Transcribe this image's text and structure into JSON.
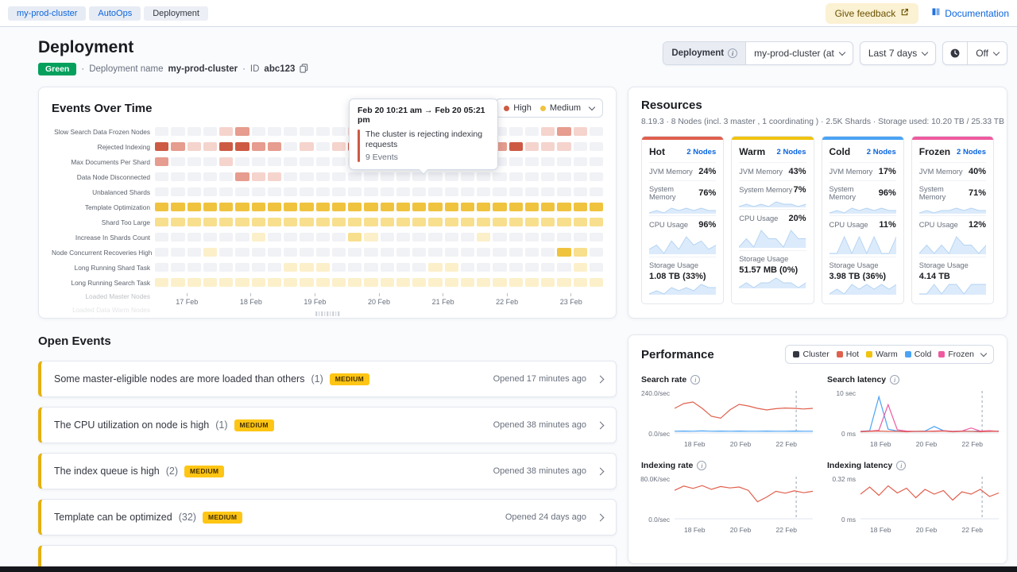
{
  "topbar": {
    "breadcrumbs": [
      {
        "label": "my-prod-cluster",
        "current": false
      },
      {
        "label": "AutoOps",
        "current": false
      },
      {
        "label": "Deployment",
        "current": true
      }
    ],
    "feedback_label": "Give feedback",
    "documentation_label": "Documentation"
  },
  "page_header": {
    "title": "Deployment",
    "health_badge": "Green",
    "deployment_name_label": "Deployment name",
    "deployment_name": "my-prod-cluster",
    "id_label": "ID",
    "id_value": "abc123",
    "controls": {
      "deployment_label": "Deployment",
      "deployment_value": "my-prod-cluster (at",
      "time_range": "Last 7 days",
      "refresh_value": "Off"
    }
  },
  "colors": {
    "accent_blue": "#0B64DD",
    "health_green": "#04A05C",
    "warning_badge": "#FEC514",
    "high_red": "#CD5A43",
    "medium_yellow": "#F0C33F",
    "hot": "#E0604E",
    "warm": "#F0C30F",
    "cold": "#4BA3F4",
    "frozen": "#EE5A9F",
    "cluster": "#343741"
  },
  "events_over_time": {
    "title": "Events Over Time",
    "legend": [
      {
        "label": "High",
        "color": "#CD5A43"
      },
      {
        "label": "Medium",
        "color": "#F0C33F"
      }
    ],
    "tooltip": {
      "title": "Feb 20 10:21 am → Feb 20 05:21 pm",
      "message": "The cluster is rejecting indexing requests",
      "count": "9 Events"
    },
    "x_labels": [
      "17 Feb",
      "18 Feb",
      "19 Feb",
      "20 Feb",
      "21 Feb",
      "22 Feb",
      "23 Feb"
    ],
    "palettes": {
      "empty": "#f1f2f6",
      "red": [
        "#f5d4cd",
        "#e69c8e",
        "#cd5a43"
      ],
      "yellow": [
        "#fcf0ca",
        "#f8df8d",
        "#f0c33f"
      ]
    },
    "rows": [
      {
        "name": "Slow Search Data Frozen Nodes",
        "palette": "red",
        "cells": [
          0,
          0,
          0,
          0,
          1,
          2,
          0,
          0,
          0,
          0,
          0,
          0,
          1,
          0,
          0,
          0,
          0,
          0,
          0,
          0,
          0,
          0,
          0,
          0,
          1,
          2,
          1,
          0
        ]
      },
      {
        "name": "Rejected Indexing",
        "palette": "red",
        "cells": [
          3,
          2,
          1,
          1,
          3,
          3,
          2,
          2,
          0,
          1,
          0,
          1,
          3,
          2,
          0,
          1,
          3,
          3,
          3,
          3,
          3,
          2,
          3,
          1,
          1,
          1,
          0,
          0
        ]
      },
      {
        "name": "Max Documents Per Shard",
        "palette": "red",
        "cells": [
          2,
          0,
          0,
          0,
          1,
          0,
          0,
          0,
          0,
          0,
          0,
          0,
          0,
          0,
          0,
          0,
          0,
          0,
          0,
          0,
          0,
          0,
          0,
          0,
          0,
          0,
          0,
          0
        ]
      },
      {
        "name": "Data Node Disconnected",
        "palette": "red",
        "cells": [
          0,
          0,
          0,
          0,
          0,
          2,
          1,
          1,
          0,
          0,
          0,
          0,
          0,
          0,
          0,
          0,
          0,
          0,
          0,
          0,
          0,
          0,
          0,
          0,
          0,
          0,
          0,
          0
        ]
      },
      {
        "name": "Unbalanced Shards",
        "palette": "red",
        "cells": [
          0,
          0,
          0,
          0,
          0,
          0,
          0,
          0,
          0,
          0,
          0,
          0,
          0,
          0,
          0,
          0,
          0,
          0,
          0,
          0,
          0,
          0,
          0,
          0,
          0,
          0,
          0,
          0
        ]
      },
      {
        "name": "Template Optimization",
        "palette": "yellow",
        "cells": [
          3,
          3,
          3,
          3,
          3,
          3,
          3,
          3,
          3,
          3,
          3,
          3,
          3,
          3,
          3,
          3,
          3,
          3,
          3,
          3,
          3,
          3,
          3,
          3,
          3,
          3,
          3,
          3
        ]
      },
      {
        "name": "Shard Too Large",
        "palette": "yellow",
        "cells": [
          2,
          2,
          2,
          2,
          2,
          2,
          2,
          2,
          2,
          2,
          2,
          2,
          2,
          2,
          2,
          2,
          2,
          2,
          2,
          2,
          2,
          2,
          2,
          2,
          2,
          2,
          2,
          2
        ]
      },
      {
        "name": "Increase In Shards Count",
        "palette": "yellow",
        "cells": [
          0,
          0,
          0,
          0,
          0,
          0,
          1,
          0,
          0,
          0,
          0,
          0,
          2,
          1,
          0,
          0,
          0,
          0,
          0,
          0,
          1,
          0,
          0,
          0,
          0,
          0,
          0,
          0
        ]
      },
      {
        "name": "Node Concurrent Recoveries High",
        "palette": "yellow",
        "cells": [
          0,
          0,
          0,
          1,
          0,
          0,
          0,
          0,
          0,
          0,
          0,
          0,
          0,
          0,
          0,
          0,
          0,
          0,
          0,
          0,
          0,
          0,
          0,
          0,
          0,
          3,
          2,
          0
        ]
      },
      {
        "name": "Long Running Shard Task",
        "palette": "yellow",
        "cells": [
          0,
          0,
          0,
          0,
          0,
          0,
          0,
          0,
          1,
          1,
          1,
          0,
          0,
          0,
          0,
          0,
          0,
          1,
          1,
          0,
          0,
          0,
          0,
          0,
          0,
          0,
          1,
          0
        ]
      },
      {
        "name": "Long Running Search Task",
        "palette": "yellow",
        "cells": [
          1,
          1,
          1,
          1,
          1,
          1,
          1,
          1,
          1,
          1,
          1,
          1,
          1,
          1,
          1,
          1,
          1,
          1,
          1,
          1,
          1,
          1,
          1,
          1,
          1,
          1,
          1,
          1
        ]
      },
      {
        "name": "Loaded Master Nodes",
        "palette": "yellow",
        "faded": true,
        "cells": []
      },
      {
        "name": "Loaded Data Warm Nodes",
        "palette": "yellow",
        "faded": true,
        "cells": []
      }
    ]
  },
  "open_events": {
    "title": "Open Events",
    "items": [
      {
        "title": "Some master-eligible nodes are more loaded than others",
        "count": "(1)",
        "severity": "MEDIUM",
        "opened": "Opened 17 minutes ago"
      },
      {
        "title": "The CPU utilization on node is high",
        "count": "(1)",
        "severity": "MEDIUM",
        "opened": "Opened 38 minutes ago"
      },
      {
        "title": "The index queue is high",
        "count": "(2)",
        "severity": "MEDIUM",
        "opened": "Opened 38 minutes ago"
      },
      {
        "title": "Template can be optimized",
        "count": "(32)",
        "severity": "MEDIUM",
        "opened": "Opened 24 days ago"
      },
      {
        "title": "",
        "count": "",
        "severity": "",
        "opened": "",
        "partial": true
      }
    ]
  },
  "resources": {
    "title": "Resources",
    "subtitle": "8.19.3 · 8 Nodes (incl. 3 master , 1 coordinating ) · 2.5K Shards · Storage used: 10.20 TB / 25.33 TB",
    "metric_labels": {
      "jvm": "JVM Memory",
      "system": "System Memory",
      "cpu": "CPU Usage",
      "storage": "Storage Usage"
    },
    "tiers": [
      {
        "name": "Hot",
        "color": "#E0604E",
        "nodes": "2 Nodes",
        "jvm": "24%",
        "system": "76%",
        "cpu": "96%",
        "storage": "1.08 TB (33%)",
        "sys_spark": [
          5,
          6,
          5,
          7,
          6,
          7,
          6,
          7,
          6,
          6
        ],
        "cpu_spark": [
          6,
          7,
          5,
          8,
          6,
          9,
          7,
          8,
          6,
          7
        ],
        "sto_spark": [
          3,
          4,
          3,
          5,
          4,
          5,
          4,
          6,
          5,
          5
        ]
      },
      {
        "name": "Warm",
        "color": "#F0C30F",
        "nodes": "2 Nodes",
        "jvm": "43%",
        "system": "7%",
        "cpu": "20%",
        "storage": "51.57 MB (0%)",
        "sys_spark": [
          4,
          5,
          4,
          5,
          4,
          6,
          5,
          5,
          4,
          5
        ],
        "cpu_spark": [
          3,
          4,
          3,
          5,
          4,
          4,
          3,
          5,
          4,
          4
        ],
        "sto_spark": [
          2,
          3,
          2,
          3,
          3,
          4,
          3,
          3,
          2,
          3
        ]
      },
      {
        "name": "Cold",
        "color": "#4BA3F4",
        "nodes": "2 Nodes",
        "jvm": "17%",
        "system": "96%",
        "cpu": "11%",
        "storage": "3.98 TB (36%)",
        "sys_spark": [
          6,
          7,
          6,
          8,
          7,
          8,
          7,
          8,
          7,
          7
        ],
        "cpu_spark": [
          3,
          3,
          4,
          3,
          4,
          3,
          4,
          3,
          3,
          4
        ],
        "sto_spark": [
          4,
          5,
          4,
          6,
          5,
          6,
          5,
          6,
          5,
          6
        ]
      },
      {
        "name": "Frozen",
        "color": "#EE5A9F",
        "nodes": "2 Nodes",
        "jvm": "40%",
        "system": "71%",
        "cpu": "12%",
        "storage": "4.14 TB",
        "sys_spark": [
          5,
          6,
          5,
          6,
          6,
          7,
          6,
          7,
          6,
          6
        ],
        "cpu_spark": [
          3,
          4,
          3,
          4,
          3,
          5,
          4,
          4,
          3,
          4
        ],
        "sto_spark": [
          4,
          4,
          5,
          4,
          5,
          5,
          4,
          5,
          5,
          5
        ]
      }
    ]
  },
  "performance": {
    "title": "Performance",
    "legend": [
      {
        "label": "Cluster",
        "color": "#343741"
      },
      {
        "label": "Hot",
        "color": "#E0604E"
      },
      {
        "label": "Warm",
        "color": "#F0C30F"
      },
      {
        "label": "Cold",
        "color": "#4BA3F4"
      },
      {
        "label": "Frozen",
        "color": "#EE5A9F"
      }
    ],
    "charts": [
      {
        "title": "Search rate",
        "y_max_label": "240.0/sec",
        "y_min_label": "0.0/sec",
        "y_max_value": 240,
        "x_labels": [
          "18 Feb",
          "20 Feb",
          "22 Feb"
        ],
        "series": [
          {
            "name": "Hot",
            "color": "#E0604E",
            "values": [
              150,
              180,
              190,
              150,
              100,
              88,
              140,
              175,
              165,
              150,
              140,
              148,
              152,
              150,
              146,
              150
            ]
          },
          {
            "name": "Cold",
            "color": "#4BA3F4",
            "values": [
              6,
              7,
              6,
              8,
              6,
              7,
              6,
              7,
              6,
              6,
              7,
              6,
              6,
              7,
              6,
              6
            ]
          }
        ]
      },
      {
        "title": "Search latency",
        "y_max_label": "10 sec",
        "y_min_label": "0 ms",
        "y_max_value": 10,
        "x_labels": [
          "18 Feb",
          "20 Feb",
          "22 Feb"
        ],
        "series": [
          {
            "name": "Cold",
            "color": "#4BA3F4",
            "values": [
              0.2,
              0.4,
              9.3,
              0.8,
              0.3,
              0.2,
              0.2,
              0.3,
              1.5,
              0.4,
              0.2,
              0.3,
              0.2,
              0.3,
              0.2,
              0.3
            ]
          },
          {
            "name": "Frozen",
            "color": "#EE5A9F",
            "values": [
              0.2,
              0.3,
              0.5,
              7.2,
              0.6,
              0.3,
              0.2,
              0.2,
              0.3,
              0.4,
              0.2,
              0.3,
              1.1,
              0.3,
              0.4,
              0.2
            ]
          },
          {
            "name": "Hot",
            "color": "#E0604E",
            "values": [
              0.1,
              0.2,
              0.3,
              0.2,
              0.2,
              0.1,
              0.2,
              0.2,
              0.2,
              0.3,
              0.1,
              0.2,
              0.2,
              0.1,
              0.2,
              0.2
            ]
          }
        ]
      },
      {
        "title": "Indexing rate",
        "y_max_label": "80.0K/sec",
        "y_min_label": "0.0/sec",
        "y_max_value": 80,
        "x_labels": [
          "18 Feb",
          "20 Feb",
          "22 Feb"
        ],
        "series": [
          {
            "name": "Hot",
            "color": "#E0604E",
            "values": [
              58,
              67,
              62,
              68,
              60,
              66,
              63,
              65,
              58,
              34,
              44,
              56,
              52,
              57,
              53,
              56
            ]
          }
        ]
      },
      {
        "title": "Indexing latency",
        "y_max_label": "0.32 ms",
        "y_min_label": "0 ms",
        "y_max_value": 0.32,
        "x_labels": [
          "18 Feb",
          "20 Feb",
          "22 Feb"
        ],
        "series": [
          {
            "name": "Hot",
            "color": "#E0604E",
            "values": [
              0.2,
              0.26,
              0.19,
              0.27,
              0.21,
              0.25,
              0.17,
              0.24,
              0.2,
              0.23,
              0.15,
              0.22,
              0.2,
              0.24,
              0.18,
              0.21
            ]
          }
        ]
      }
    ]
  }
}
